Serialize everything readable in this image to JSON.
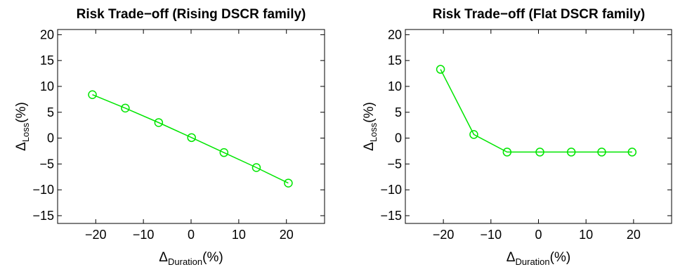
{
  "chart_data": [
    {
      "type": "line",
      "title": "Risk Trade−off (Rising DSCR family)",
      "xlabel_symbol": "Δ",
      "xlabel_sub": "Duration",
      "xlabel_unit": "(%)",
      "ylabel_symbol": "Δ",
      "ylabel_sub": "Loss",
      "ylabel_unit": "(%)",
      "xlim": [
        -28,
        28
      ],
      "ylim": [
        -16.5,
        21
      ],
      "xticks": [
        -20,
        -10,
        0,
        10,
        20
      ],
      "yticks": [
        -15,
        -10,
        -5,
        0,
        5,
        10,
        15,
        20
      ],
      "grid": false,
      "color": "#00e600",
      "marker": "circle",
      "series": [
        {
          "x": [
            -20.7,
            -13.8,
            -6.8,
            0.1,
            6.9,
            13.7,
            20.4
          ],
          "y": [
            8.4,
            5.8,
            3.0,
            0.1,
            -2.8,
            -5.7,
            -8.7
          ]
        }
      ]
    },
    {
      "type": "line",
      "title": "Risk Trade−off (Flat DSCR family)",
      "xlabel_symbol": "Δ",
      "xlabel_sub": "Duration",
      "xlabel_unit": "(%)",
      "ylabel_symbol": "Δ",
      "ylabel_sub": "Loss",
      "ylabel_unit": "(%)",
      "xlim": [
        -28,
        28
      ],
      "ylim": [
        -16.5,
        21
      ],
      "xticks": [
        -20,
        -10,
        0,
        10,
        20
      ],
      "yticks": [
        -15,
        -10,
        -5,
        0,
        5,
        10,
        15,
        20
      ],
      "grid": false,
      "color": "#00e600",
      "marker": "circle",
      "series": [
        {
          "x": [
            -20.6,
            -13.6,
            -6.6,
            0.3,
            6.9,
            13.3,
            19.7
          ],
          "y": [
            13.3,
            0.7,
            -2.7,
            -2.7,
            -2.7,
            -2.7,
            -2.7
          ]
        }
      ]
    }
  ]
}
